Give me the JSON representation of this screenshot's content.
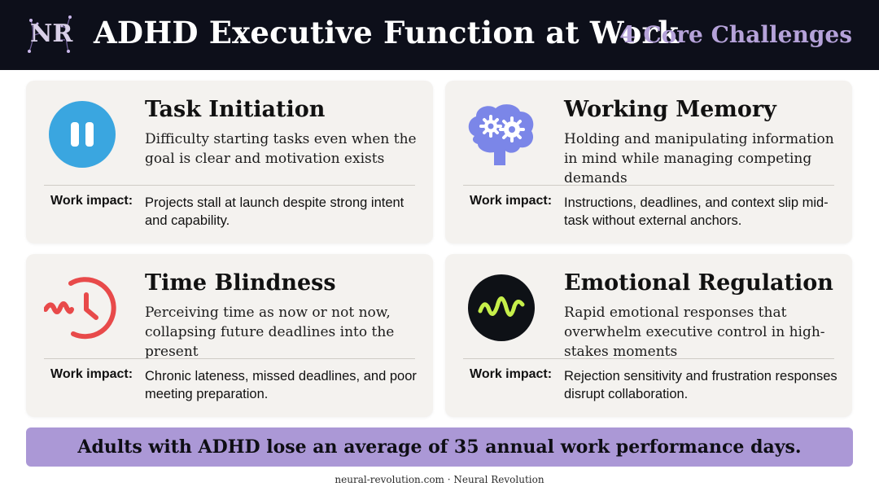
{
  "header": {
    "logo_text": "NR",
    "title": "ADHD Executive Function at Work",
    "subtitle": "4 Core Challenges"
  },
  "cards": [
    {
      "title": "Task Initiation",
      "description": "Difficulty starting tasks even when the goal is clear and motivation exists",
      "impact_label": "Work impact:",
      "impact": "Projects stall at launch despite strong intent and capability.",
      "icon": "pause-icon",
      "icon_color": "#3aa6e0"
    },
    {
      "title": "Working Memory",
      "description": "Holding and manipulating information in mind while managing competing demands",
      "impact_label": "Work impact:",
      "impact": "Instructions, deadlines, and context slip mid-task without external anchors.",
      "icon": "brain-gears-icon",
      "icon_color": "#7b86e8"
    },
    {
      "title": "Time Blindness",
      "description": "Perceiving time as now or not now, collapsing future deadlines into the present",
      "impact_label": "Work impact:",
      "impact": "Chronic lateness, missed deadlines, and poor meeting preparation.",
      "icon": "clock-icon",
      "icon_color": "#e84a4a"
    },
    {
      "title": "Emotional Regulation",
      "description": "Rapid emotional responses that overwhelm executive control in high-stakes moments",
      "impact_label": "Work impact:",
      "impact": "Rejection sensitivity and frustration responses disrupt collaboration.",
      "icon": "wave-icon",
      "icon_color": "#c6ef4a"
    }
  ],
  "banner": {
    "text": "Adults with ADHD lose an average of 35 annual work performance days."
  },
  "footer": {
    "text": "neural-revolution.com · Neural Revolution"
  },
  "colors": {
    "header_bg": "#0d0f1a",
    "subtitle": "#b5a2d9",
    "card_bg": "#f4f2ef",
    "banner_bg": "#ab98d6"
  }
}
